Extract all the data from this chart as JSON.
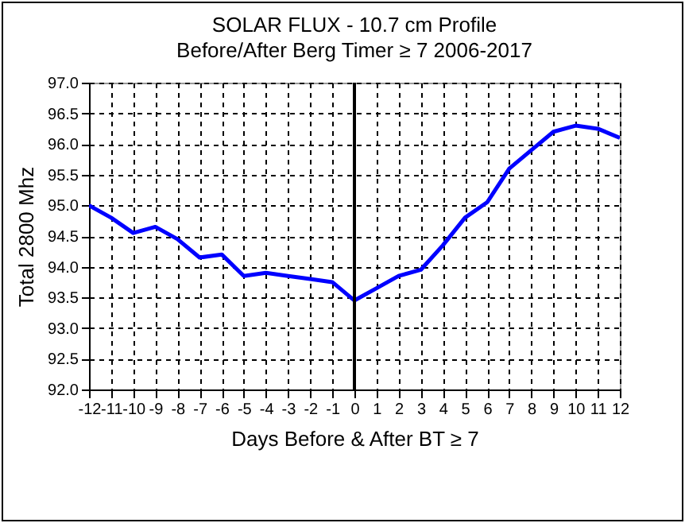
{
  "chart_data": {
    "type": "line",
    "title": "SOLAR FLUX - 10.7 cm Profile",
    "subtitle": "Before/After Berg Timer ≥ 7   2006-2017",
    "xlabel": "Days Before & After BT ≥ 7",
    "ylabel": "Total 2800 Mhz",
    "x": [
      -12,
      -11,
      -10,
      -9,
      -8,
      -7,
      -6,
      -5,
      -4,
      -3,
      -2,
      -1,
      0,
      1,
      2,
      3,
      4,
      5,
      6,
      7,
      8,
      9,
      10,
      11,
      12
    ],
    "series": [
      {
        "color": "#0000ff",
        "values": [
          95.0,
          94.8,
          94.55,
          94.65,
          94.45,
          94.15,
          94.2,
          93.85,
          93.9,
          93.85,
          93.8,
          93.75,
          93.45,
          93.65,
          93.85,
          93.95,
          94.35,
          94.8,
          95.05,
          95.6,
          95.9,
          96.2,
          96.3,
          96.25,
          96.1
        ]
      }
    ],
    "xlim": [
      -12,
      12
    ],
    "xticks": [
      -12,
      -11,
      -10,
      -9,
      -8,
      -7,
      -6,
      -5,
      -4,
      -3,
      -2,
      -1,
      0,
      1,
      2,
      3,
      4,
      5,
      6,
      7,
      8,
      9,
      10,
      11,
      12
    ],
    "ylim": [
      92,
      97
    ],
    "yticks": [
      {
        "value": 92,
        "label": "92.0"
      },
      92.5,
      {
        "value": 93,
        "label": "93.0"
      },
      93.5,
      {
        "value": 94,
        "label": "94.0"
      },
      94.5,
      {
        "value": 95,
        "label": "95.0"
      },
      95.5,
      {
        "value": 96,
        "label": "96.0"
      },
      96.5,
      {
        "value": 97,
        "label": "97.0"
      }
    ],
    "ref_lines": [
      {
        "axis": "x",
        "value": 0,
        "color": "#000000"
      }
    ],
    "grid": true,
    "line_style": "solid",
    "marker": "none",
    "legend": false
  }
}
